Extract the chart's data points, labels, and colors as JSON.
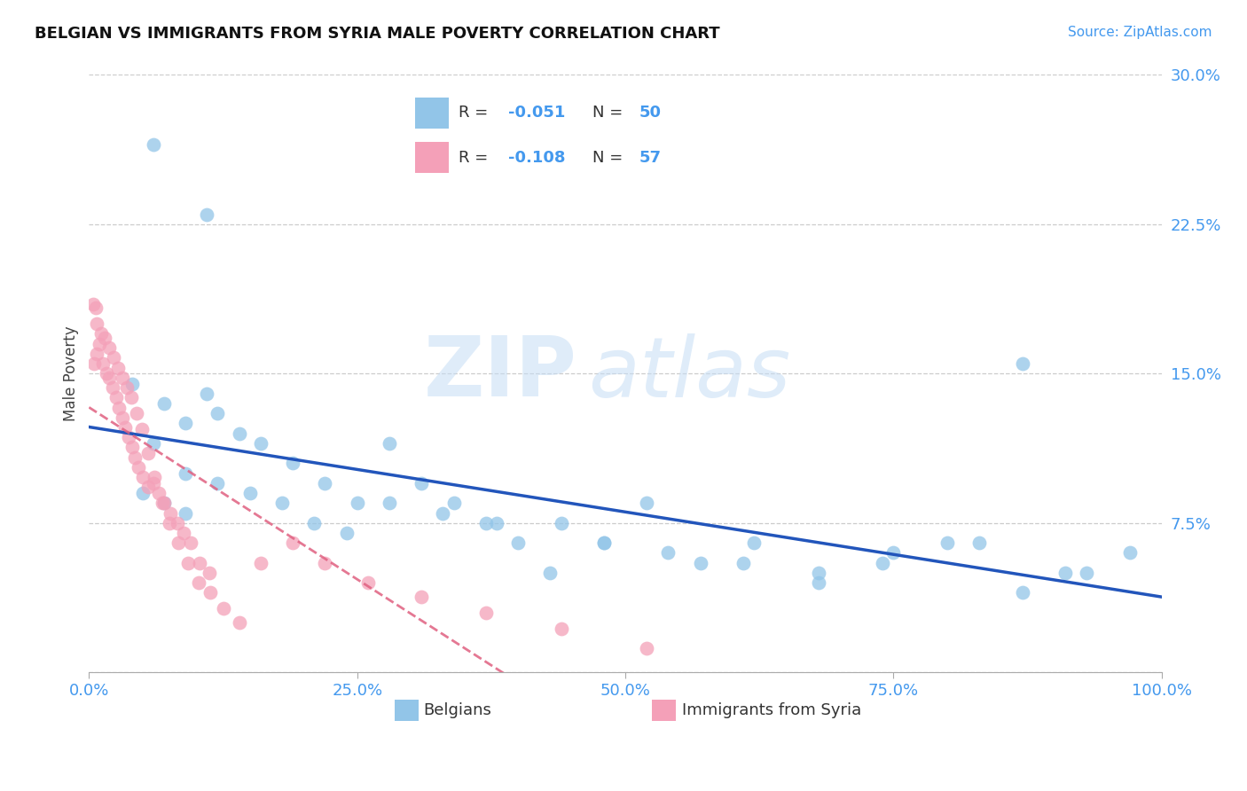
{
  "title": "BELGIAN VS IMMIGRANTS FROM SYRIA MALE POVERTY CORRELATION CHART",
  "source_text": "Source: ZipAtlas.com",
  "ylabel": "Male Poverty",
  "watermark_zip": "ZIP",
  "watermark_atlas": "atlas",
  "xlim": [
    0,
    1.0
  ],
  "ylim": [
    0,
    0.3
  ],
  "ytick_vals": [
    0.0,
    0.075,
    0.15,
    0.225,
    0.3
  ],
  "ytick_labels": [
    "",
    "7.5%",
    "15.0%",
    "22.5%",
    "30.0%"
  ],
  "xtick_vals": [
    0.0,
    0.25,
    0.5,
    0.75,
    1.0
  ],
  "xtick_labels": [
    "0.0%",
    "25.0%",
    "50.0%",
    "75.0%",
    "100.0%"
  ],
  "bottom_label_blue": "Belgians",
  "bottom_label_pink": "Immigrants from Syria",
  "blue_color": "#92c5e8",
  "pink_color": "#f4a0b8",
  "blue_line_color": "#2255bb",
  "pink_line_color": "#e06080",
  "R_blue": -0.051,
  "N_blue": 50,
  "R_pink": -0.108,
  "N_pink": 57,
  "blue_x": [
    0.06,
    0.11,
    0.04,
    0.07,
    0.09,
    0.11,
    0.14,
    0.06,
    0.09,
    0.12,
    0.16,
    0.19,
    0.22,
    0.25,
    0.28,
    0.31,
    0.34,
    0.37,
    0.4,
    0.44,
    0.48,
    0.52,
    0.57,
    0.62,
    0.68,
    0.74,
    0.8,
    0.87,
    0.93,
    0.05,
    0.07,
    0.09,
    0.12,
    0.15,
    0.18,
    0.21,
    0.24,
    0.28,
    0.33,
    0.38,
    0.43,
    0.48,
    0.54,
    0.61,
    0.68,
    0.75,
    0.83,
    0.91,
    0.97,
    0.87
  ],
  "blue_y": [
    0.265,
    0.23,
    0.145,
    0.135,
    0.125,
    0.14,
    0.12,
    0.115,
    0.1,
    0.13,
    0.115,
    0.105,
    0.095,
    0.085,
    0.115,
    0.095,
    0.085,
    0.075,
    0.065,
    0.075,
    0.065,
    0.085,
    0.055,
    0.065,
    0.045,
    0.055,
    0.065,
    0.04,
    0.05,
    0.09,
    0.085,
    0.08,
    0.095,
    0.09,
    0.085,
    0.075,
    0.07,
    0.085,
    0.08,
    0.075,
    0.05,
    0.065,
    0.06,
    0.055,
    0.05,
    0.06,
    0.065,
    0.05,
    0.06,
    0.155
  ],
  "pink_x": [
    0.004,
    0.006,
    0.005,
    0.007,
    0.01,
    0.013,
    0.016,
    0.019,
    0.022,
    0.025,
    0.028,
    0.031,
    0.034,
    0.037,
    0.04,
    0.043,
    0.046,
    0.05,
    0.055,
    0.06,
    0.065,
    0.07,
    0.076,
    0.082,
    0.088,
    0.095,
    0.103,
    0.112,
    0.007,
    0.011,
    0.015,
    0.019,
    0.023,
    0.027,
    0.031,
    0.035,
    0.039,
    0.044,
    0.049,
    0.055,
    0.061,
    0.068,
    0.075,
    0.083,
    0.092,
    0.102,
    0.113,
    0.125,
    0.14,
    0.16,
    0.19,
    0.22,
    0.26,
    0.31,
    0.37,
    0.44,
    0.52
  ],
  "pink_y": [
    0.185,
    0.183,
    0.155,
    0.16,
    0.165,
    0.155,
    0.15,
    0.148,
    0.143,
    0.138,
    0.133,
    0.128,
    0.123,
    0.118,
    0.113,
    0.108,
    0.103,
    0.098,
    0.093,
    0.095,
    0.09,
    0.085,
    0.08,
    0.075,
    0.07,
    0.065,
    0.055,
    0.05,
    0.175,
    0.17,
    0.168,
    0.163,
    0.158,
    0.153,
    0.148,
    0.143,
    0.138,
    0.13,
    0.122,
    0.11,
    0.098,
    0.085,
    0.075,
    0.065,
    0.055,
    0.045,
    0.04,
    0.032,
    0.025,
    0.055,
    0.065,
    0.055,
    0.045,
    0.038,
    0.03,
    0.022,
    0.012
  ]
}
